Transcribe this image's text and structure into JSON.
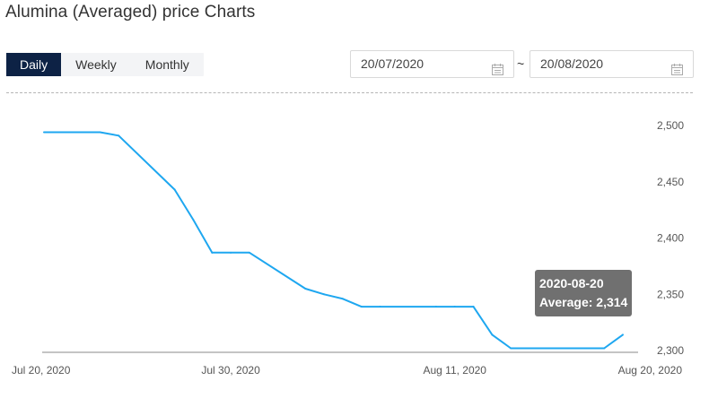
{
  "page": {
    "title": "Alumina (Averaged) price Charts"
  },
  "tabs": [
    {
      "label": "Daily",
      "active": true
    },
    {
      "label": "Weekly",
      "active": false
    },
    {
      "label": "Monthly",
      "active": false
    }
  ],
  "date_range": {
    "from": "20/07/2020",
    "separator": "~",
    "to": "20/08/2020",
    "icon": "calendar-icon"
  },
  "tooltip": {
    "date": "2020-08-20",
    "label": "Average: 2,314"
  },
  "colors": {
    "line": "#1ea7f0",
    "active_tab": "#0d2245",
    "tooltip_bg": "#646464"
  },
  "chart_data": {
    "type": "line",
    "title": "",
    "xlabel": "",
    "ylabel": "",
    "x_start": "2020-07-20",
    "x_end": "2020-08-20",
    "ylim": [
      2300,
      2500
    ],
    "y_ticks": [
      "2,500",
      "2,450",
      "2,400",
      "2,350",
      "2,300"
    ],
    "y_tick_values": [
      2500,
      2450,
      2400,
      2350,
      2300
    ],
    "x_ticks": [
      {
        "label": "Jul 20, 2020",
        "date": "2020-07-20"
      },
      {
        "label": "Jul 30, 2020",
        "date": "2020-07-30"
      },
      {
        "label": "Aug 11, 2020",
        "date": "2020-08-11"
      },
      {
        "label": "Aug 20, 2020",
        "date": "2020-08-20"
      }
    ],
    "series": [
      {
        "points": [
          {
            "x": "2020-07-20",
            "y": 2494
          },
          {
            "x": "2020-07-23",
            "y": 2494
          },
          {
            "x": "2020-07-24",
            "y": 2491
          },
          {
            "x": "2020-07-27",
            "y": 2443
          },
          {
            "x": "2020-07-28",
            "y": 2416
          },
          {
            "x": "2020-07-29",
            "y": 2387
          },
          {
            "x": "2020-07-30",
            "y": 2387
          },
          {
            "x": "2020-07-31",
            "y": 2387
          },
          {
            "x": "2020-08-03",
            "y": 2355
          },
          {
            "x": "2020-08-04",
            "y": 2350
          },
          {
            "x": "2020-08-05",
            "y": 2346
          },
          {
            "x": "2020-08-06",
            "y": 2339
          },
          {
            "x": "2020-08-07",
            "y": 2339
          },
          {
            "x": "2020-08-10",
            "y": 2339
          },
          {
            "x": "2020-08-11",
            "y": 2339
          },
          {
            "x": "2020-08-12",
            "y": 2339
          },
          {
            "x": "2020-08-13",
            "y": 2314
          },
          {
            "x": "2020-08-14",
            "y": 2302
          },
          {
            "x": "2020-08-17",
            "y": 2302
          },
          {
            "x": "2020-08-18",
            "y": 2302
          },
          {
            "x": "2020-08-19",
            "y": 2302
          },
          {
            "x": "2020-08-20",
            "y": 2314
          }
        ]
      }
    ]
  }
}
